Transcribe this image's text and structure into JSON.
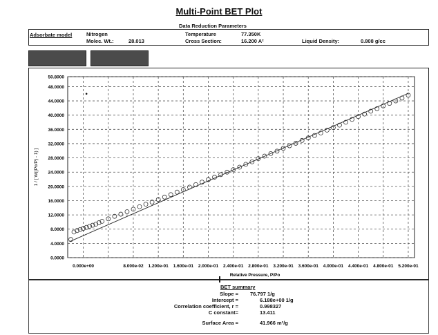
{
  "title": "Multi-Point BET Plot",
  "params": {
    "heading": "Data Reduction Parameters",
    "adsorbate_label": "Adsorbate model",
    "adsorbate": "Nitrogen",
    "molec_wt_label": "Molec. Wt.:",
    "molec_wt": "28.013",
    "temperature_label": "Temperature",
    "temperature": "77.350K",
    "cross_section_label": "Cross Section:",
    "cross_section": "16.200 A²",
    "liquid_density_label": "Liquid Density:",
    "liquid_density": "0.808 g/cc"
  },
  "redaction_color": "#4b4b4b",
  "chart_data": {
    "type": "scatter",
    "xlabel": "Relative Pressure, P/Po",
    "ylabel": "1 / [ W((Po/P) - 1) ]",
    "xlim": [
      -0.025,
      0.53
    ],
    "ylim": [
      0,
      50.8
    ],
    "grid": true,
    "x_ticks": [
      0.0,
      0.04,
      0.08,
      0.12,
      0.16,
      0.2,
      0.24,
      0.28,
      0.32,
      0.36,
      0.4,
      0.44,
      0.48,
      0.52
    ],
    "x_tick_labels": [
      "0.000e+00",
      "",
      "8.000e-02",
      "1.200e-01",
      "1.600e-01",
      "2.000e-01",
      "2.400e-01",
      "2.800e-01",
      "3.200e-01",
      "3.600e-01",
      "4.000e-01",
      "4.400e-01",
      "4.800e-01",
      "5.200e-01"
    ],
    "y_ticks": [
      0,
      4,
      8,
      12,
      16,
      20,
      24,
      28,
      32,
      36,
      40,
      44,
      48,
      50.8
    ],
    "y_tick_labels": [
      "0.0000",
      "4.0000",
      "8.0000",
      "12.0000",
      "16.0000",
      "20.0000",
      "24.0000",
      "28.0000",
      "32.0000",
      "36.0000",
      "40.0000",
      "44.0000",
      "48.0000",
      "50.8000"
    ],
    "series": [
      {
        "values": [
          [
            -0.02,
            5.1
          ],
          [
            -0.015,
            7.2
          ],
          [
            -0.01,
            7.6
          ],
          [
            -0.005,
            7.9
          ],
          [
            0.0,
            8.2
          ],
          [
            0.005,
            8.5
          ],
          [
            0.01,
            8.8
          ],
          [
            0.015,
            9.1
          ],
          [
            0.02,
            9.4
          ],
          [
            0.025,
            9.8
          ],
          [
            0.03,
            10.2
          ],
          [
            0.04,
            10.9
          ],
          [
            0.05,
            11.6
          ],
          [
            0.06,
            12.2
          ],
          [
            0.07,
            12.9
          ],
          [
            0.08,
            13.6
          ],
          [
            0.09,
            14.3
          ],
          [
            0.1,
            15.0
          ],
          [
            0.11,
            15.6
          ],
          [
            0.12,
            16.3
          ],
          [
            0.13,
            17.0
          ],
          [
            0.14,
            17.7
          ],
          [
            0.15,
            18.4
          ],
          [
            0.16,
            19.1
          ],
          [
            0.17,
            19.8
          ],
          [
            0.18,
            20.5
          ],
          [
            0.19,
            21.2
          ],
          [
            0.2,
            21.9
          ],
          [
            0.21,
            22.6
          ],
          [
            0.22,
            23.3
          ],
          [
            0.23,
            24.0
          ],
          [
            0.24,
            24.7
          ],
          [
            0.25,
            25.4
          ],
          [
            0.26,
            26.2
          ],
          [
            0.27,
            26.9
          ],
          [
            0.28,
            27.8
          ],
          [
            0.29,
            28.5
          ],
          [
            0.3,
            29.2
          ],
          [
            0.31,
            29.9
          ],
          [
            0.32,
            30.7
          ],
          [
            0.33,
            31.4
          ],
          [
            0.34,
            32.1
          ],
          [
            0.35,
            32.9
          ],
          [
            0.36,
            33.6
          ],
          [
            0.37,
            34.3
          ],
          [
            0.38,
            35.0
          ],
          [
            0.39,
            35.8
          ],
          [
            0.4,
            36.5
          ],
          [
            0.41,
            37.2
          ],
          [
            0.42,
            38.0
          ],
          [
            0.43,
            38.8
          ],
          [
            0.44,
            39.6
          ],
          [
            0.45,
            40.3
          ],
          [
            0.46,
            41.1
          ],
          [
            0.47,
            41.8
          ],
          [
            0.48,
            42.6
          ],
          [
            0.49,
            43.3
          ],
          [
            0.5,
            44.0
          ],
          [
            0.51,
            44.8
          ],
          [
            0.52,
            45.6
          ]
        ]
      }
    ],
    "outliers": [
      [
        0.005,
        46.0
      ]
    ],
    "fit_line": {
      "slope": 76.797,
      "intercept": 6.188
    }
  },
  "bet": {
    "heading": "BET summary",
    "slope_label": "Slope =",
    "slope": "76.797 1/g",
    "intercept_label": "Intercept =",
    "intercept": "6.188e+00 1/g",
    "corr_label": "Correlation coefficient, r =",
    "corr": "0.998327",
    "c_label": "C constant=",
    "c": "13.411",
    "area_label": "Surface Area =",
    "area": "41.966 m²/g"
  }
}
